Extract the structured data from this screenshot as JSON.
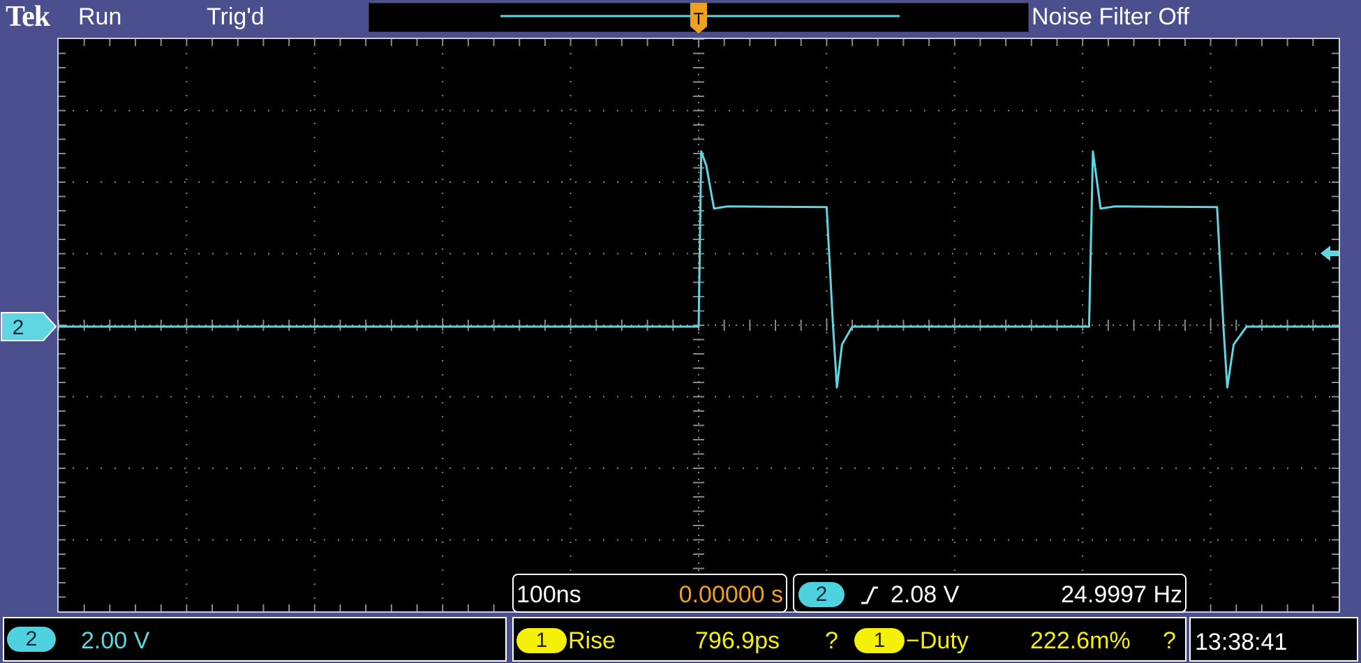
{
  "header": {
    "brand": "Tek",
    "run_state": "Run",
    "trigger_state": "Trig'd",
    "noise_filter": "Noise Filter Off"
  },
  "channel_marker": {
    "label": "2"
  },
  "timebase": {
    "scale": "100ns",
    "position": "0.00000 s"
  },
  "trigger": {
    "source": "2",
    "level": "2.08 V",
    "frequency": "24.9997 Hz"
  },
  "channel": {
    "number": "2",
    "scale": "2.00 V"
  },
  "measurements": [
    {
      "source": "1",
      "name": "Rise",
      "value": "796.9ps",
      "flag": "?"
    },
    {
      "source": "1",
      "name": "−Duty",
      "value": "222.6m%",
      "flag": "?"
    }
  ],
  "clock": "13:38:41",
  "colors": {
    "bezel": "#4b4f8d",
    "channel2": "#5fd6e2",
    "channel1": "#f5f008",
    "trigger": "#f0a020"
  },
  "chart_data": {
    "type": "line",
    "x_divisions": 10,
    "y_divisions": 8,
    "grid": true,
    "series": [
      {
        "name": "2",
        "points": [
          [
            -5.0,
            0.0
          ],
          [
            0.0,
            0.0
          ],
          [
            0.02,
            2.45
          ],
          [
            0.06,
            2.25
          ],
          [
            0.12,
            1.65
          ],
          [
            0.22,
            1.68
          ],
          [
            1.0,
            1.67
          ],
          [
            1.05,
            0.0
          ],
          [
            1.08,
            -0.85
          ],
          [
            1.12,
            -0.25
          ],
          [
            1.2,
            0.0
          ],
          [
            3.05,
            0.0
          ],
          [
            3.08,
            2.45
          ],
          [
            3.14,
            1.65
          ],
          [
            3.25,
            1.68
          ],
          [
            4.05,
            1.67
          ],
          [
            4.1,
            0.0
          ],
          [
            4.13,
            -0.85
          ],
          [
            4.18,
            -0.25
          ],
          [
            4.28,
            0.0
          ],
          [
            5.0,
            0.0
          ]
        ]
      }
    ]
  }
}
